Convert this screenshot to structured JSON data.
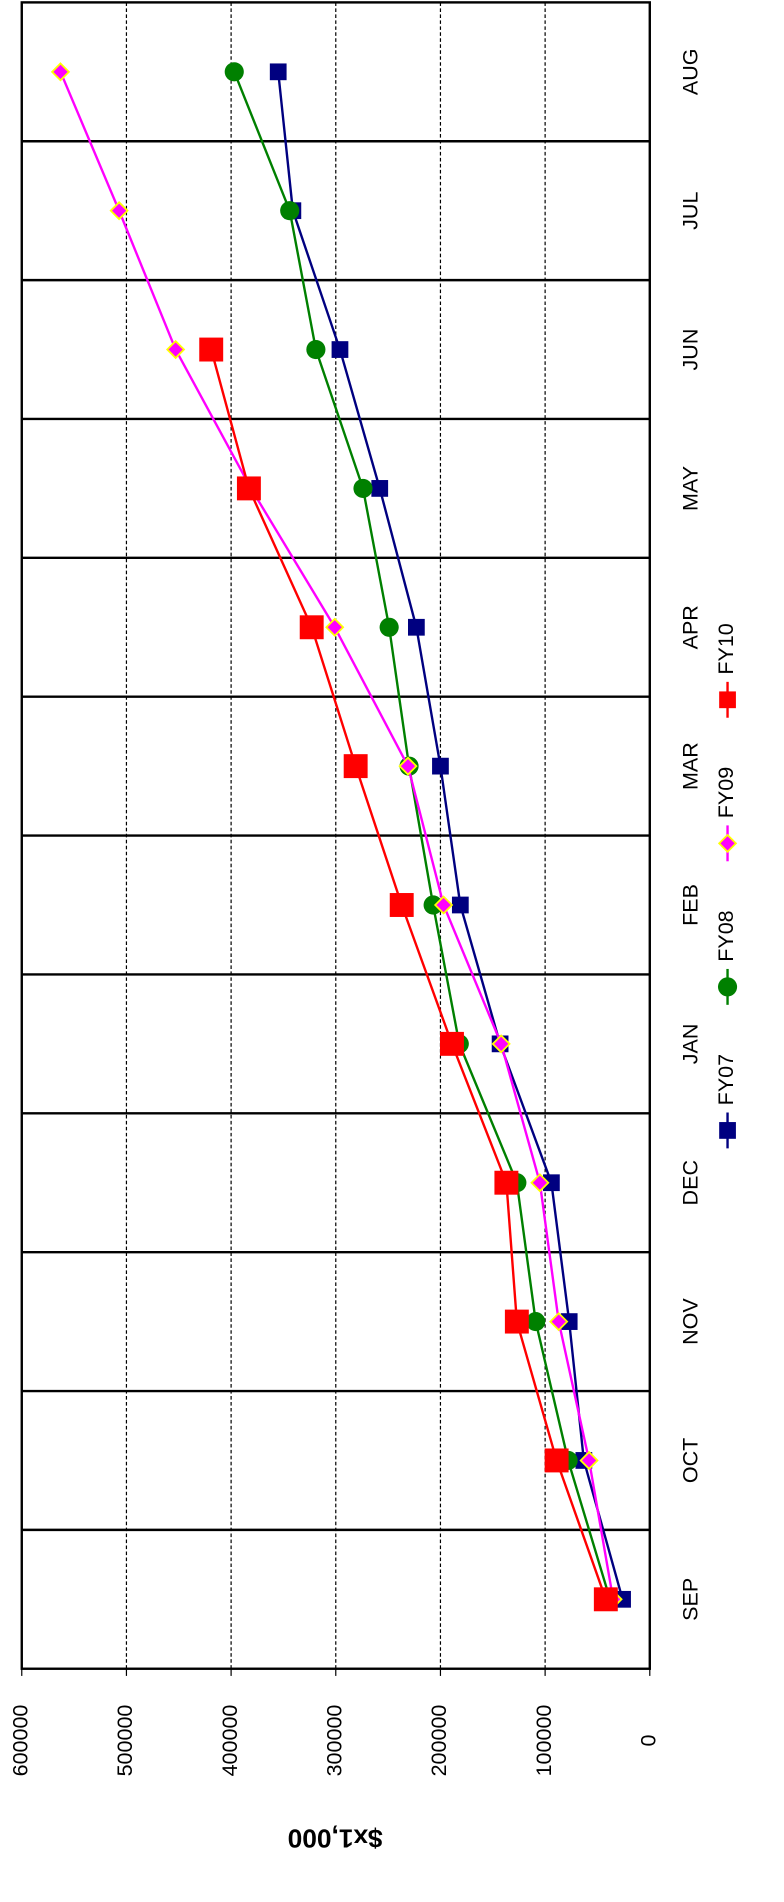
{
  "chart_data": {
    "type": "line",
    "y_label": "$x1,000",
    "categories": [
      "SEP",
      "OCT",
      "NOV",
      "DEC",
      "JAN",
      "FEB",
      "MAR",
      "APR",
      "MAY",
      "JUN",
      "JUL",
      "AUG"
    ],
    "ylim": [
      0,
      600000
    ],
    "yticks": [
      0,
      100000,
      200000,
      300000,
      400000,
      500000,
      600000
    ],
    "grid": true,
    "legend": "bottom",
    "series": [
      {
        "name": "FY07",
        "color": "#000080",
        "marker": "square",
        "values": [
          26000,
          63000,
          77000,
          94000,
          143000,
          181000,
          200000,
          223000,
          258000,
          296000,
          341000,
          355000
        ]
      },
      {
        "name": "FY08",
        "color": "#008000",
        "marker": "circle",
        "values": [
          38000,
          78000,
          109000,
          127000,
          182000,
          207000,
          230000,
          249000,
          274000,
          319000,
          344000,
          397000
        ]
      },
      {
        "name": "FY09",
        "color": "#ff00ff",
        "marker": "diamond",
        "values": [
          35000,
          58000,
          87000,
          105000,
          142000,
          197000,
          231000,
          301000,
          381000,
          453000,
          507000,
          563000
        ]
      },
      {
        "name": "FY10",
        "color": "#ff0000",
        "marker": "bigsquare",
        "values": [
          42000,
          89000,
          127000,
          137000,
          189000,
          237000,
          281000,
          323000,
          383000,
          419000,
          null,
          null
        ]
      }
    ]
  }
}
